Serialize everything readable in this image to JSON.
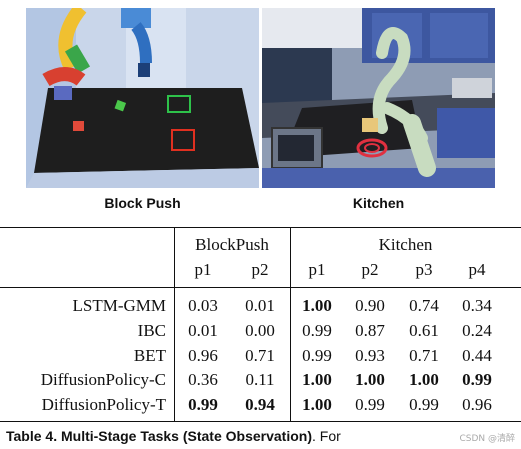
{
  "figures": [
    {
      "caption": "Block Push"
    },
    {
      "caption": "Kitchen"
    }
  ],
  "table": {
    "groups": [
      {
        "label": "BlockPush",
        "columns": [
          "p1",
          "p2"
        ]
      },
      {
        "label": "Kitchen",
        "columns": [
          "p1",
          "p2",
          "p3",
          "p4"
        ]
      }
    ],
    "rows": [
      {
        "method": "LSTM-GMM",
        "values": [
          "0.03",
          "0.01",
          "1.00",
          "0.90",
          "0.74",
          "0.34"
        ],
        "bold": [
          false,
          false,
          true,
          false,
          false,
          false
        ]
      },
      {
        "method": "IBC",
        "values": [
          "0.01",
          "0.00",
          "0.99",
          "0.87",
          "0.61",
          "0.24"
        ],
        "bold": [
          false,
          false,
          false,
          false,
          false,
          false
        ]
      },
      {
        "method": "BET",
        "values": [
          "0.96",
          "0.71",
          "0.99",
          "0.93",
          "0.71",
          "0.44"
        ],
        "bold": [
          false,
          false,
          false,
          false,
          false,
          false
        ]
      },
      {
        "method": "DiffusionPolicy-C",
        "values": [
          "0.36",
          "0.11",
          "1.00",
          "1.00",
          "1.00",
          "0.99"
        ],
        "bold": [
          false,
          false,
          true,
          true,
          true,
          true
        ]
      },
      {
        "method": "DiffusionPolicy-T",
        "values": [
          "0.99",
          "0.94",
          "1.00",
          "0.99",
          "0.99",
          "0.96"
        ],
        "bold": [
          true,
          true,
          true,
          false,
          false,
          false
        ]
      }
    ]
  },
  "caption": {
    "label": "Table 4.",
    "title": "Multi-Stage Tasks (State Observation)",
    "rest": ". For"
  },
  "watermark": "CSDN @清醉"
}
